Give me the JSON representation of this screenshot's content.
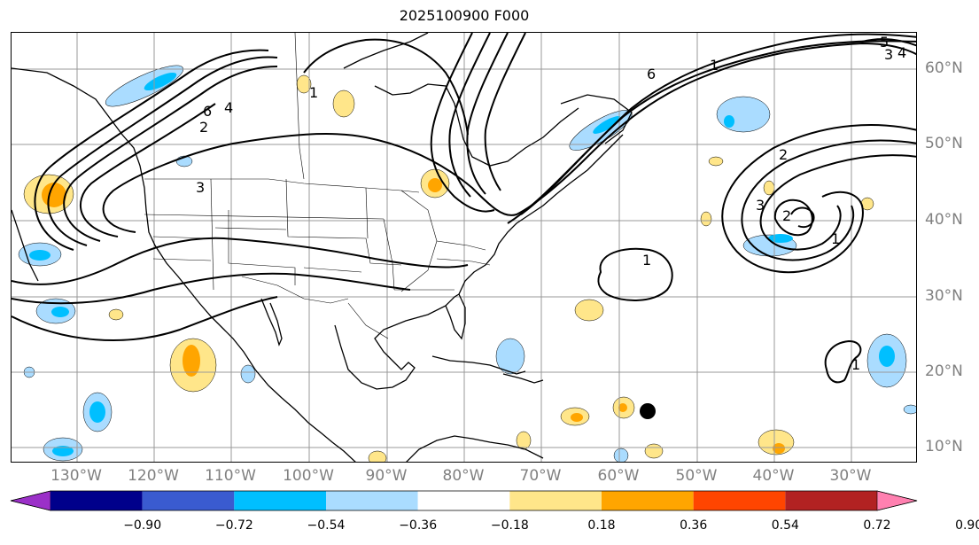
{
  "title": "2025100900 F000",
  "longitude_labels": [
    "130°W",
    "120°W",
    "110°W",
    "100°W",
    "90°W",
    "80°W",
    "70°W",
    "60°W",
    "50°W",
    "40°W",
    "30°W"
  ],
  "latitude_labels": [
    "60°N",
    "50°N",
    "40°N",
    "30°N",
    "20°N",
    "10°N"
  ],
  "contour_labels": [
    "6",
    "4",
    "2",
    "1",
    "3",
    "5"
  ],
  "colorbar": {
    "ticks": [
      "−0.90",
      "−0.72",
      "−0.54",
      "−0.36",
      "−0.18",
      "0.18",
      "0.36",
      "0.54",
      "0.72",
      "0.90"
    ],
    "colors": [
      "#9b30c8",
      "#00008b",
      "#3a5bd0",
      "#00bfff",
      "#aadcff",
      "#ffffff",
      "#ffe68a",
      "#ffa500",
      "#ff4500",
      "#b22222",
      "#ff80b0"
    ]
  },
  "colors": {
    "grid": "#999999",
    "contour": "#000000",
    "land_outline": "#000000",
    "axis_label": "#808080",
    "neg_light": "#aadcff",
    "neg_med": "#00bfff",
    "pos_light": "#ffe68a",
    "pos_med": "#ffa500"
  },
  "marker": {
    "type": "filled-circle",
    "color": "#000000"
  }
}
